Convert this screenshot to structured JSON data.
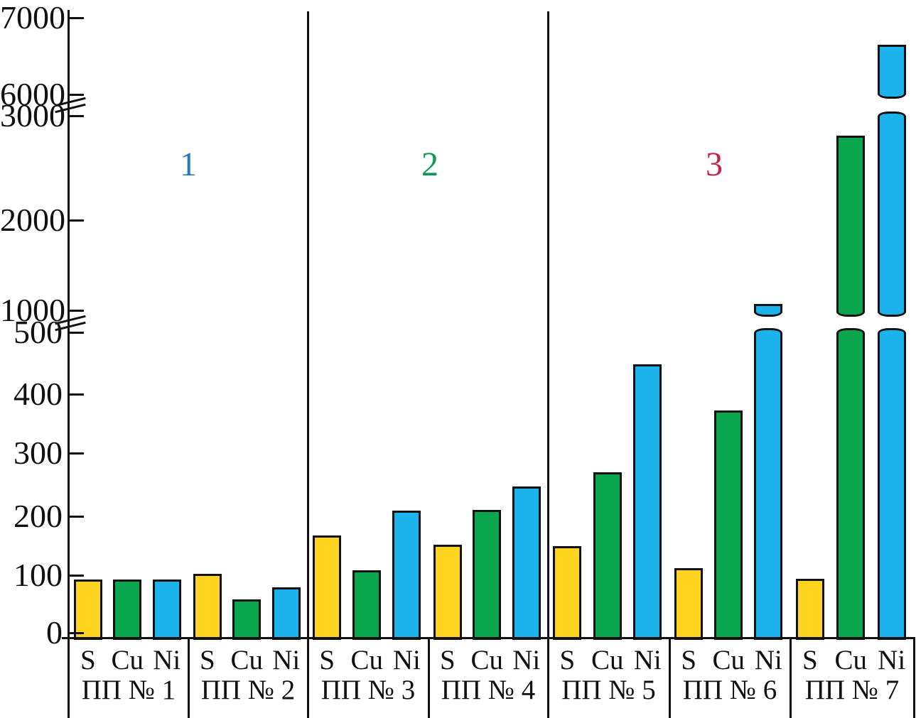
{
  "chart_data": {
    "type": "bar",
    "title": "",
    "xlabel": "",
    "ylabel": "",
    "elements": [
      "S",
      "Cu",
      "Ni"
    ],
    "element_colors": {
      "S": "#FFD41E",
      "Cu": "#0AA64E",
      "Ni": "#1CB2EC"
    },
    "bar_outline_color": "#121212",
    "groups": [
      {
        "label": "ПП № 1",
        "region": "1",
        "values": {
          "S": 95,
          "Cu": 95,
          "Ni": 95
        }
      },
      {
        "label": "ПП № 2",
        "region": "1",
        "values": {
          "S": 105,
          "Cu": 63,
          "Ni": 83
        }
      },
      {
        "label": "ПП № 3",
        "region": "2",
        "values": {
          "S": 168,
          "Cu": 110,
          "Ni": 208
        }
      },
      {
        "label": "ПП № 4",
        "region": "2",
        "values": {
          "S": 152,
          "Cu": 209,
          "Ni": 248
        }
      },
      {
        "label": "ПП № 5",
        "region": "3",
        "values": {
          "S": 150,
          "Cu": 271,
          "Ni": 448
        }
      },
      {
        "label": "ПП № 6",
        "region": "3",
        "values": {
          "S": 114,
          "Cu": 372,
          "Ni": 1090
        }
      },
      {
        "label": "ПП № 7",
        "region": "3",
        "values": {
          "S": 97,
          "Cu": 2800,
          "Ni": 6650
        }
      }
    ],
    "regions": [
      {
        "label": "1",
        "color": "#2878BE",
        "groups": [
          "ПП № 1",
          "ПП № 2"
        ]
      },
      {
        "label": "2",
        "color": "#0A9B52",
        "groups": [
          "ПП № 3",
          "ПП № 4"
        ]
      },
      {
        "label": "3",
        "color": "#C32347",
        "groups": [
          "ПП № 5",
          "ПП № 6",
          "ПП № 7"
        ]
      }
    ],
    "y_axis": {
      "tick_labels": [
        "0",
        "100",
        "200",
        "300",
        "400",
        "500",
        "1000",
        "2000",
        "3000",
        "6000",
        "7000"
      ],
      "axis_breaks": [
        [
          "500",
          "1000"
        ],
        [
          "3000",
          "6000"
        ]
      ],
      "ylim": [
        0,
        7000
      ],
      "grid": false,
      "legend": "none"
    }
  }
}
